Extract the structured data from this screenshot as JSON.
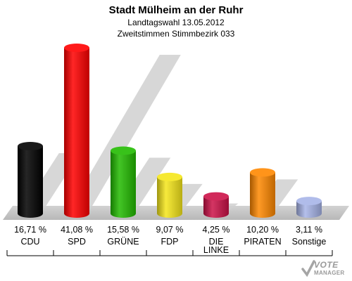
{
  "header": {
    "title": "Stadt Mülheim an der Ruhr",
    "subtitle1": "Landtagswahl 13.05.2012",
    "subtitle2": "Zweitstimmen Stimmbezirk 033"
  },
  "logo": {
    "line1": "VOTE",
    "line2": "MANAGER"
  },
  "chart_data": {
    "type": "bar",
    "categories": [
      "CDU",
      "SPD",
      "GRÜNE",
      "FDP",
      "DIE LINKE",
      "PIRATEN",
      "Sonstige"
    ],
    "values": [
      16.71,
      41.08,
      15.58,
      9.07,
      4.25,
      10.2,
      3.11
    ],
    "value_labels": [
      "16,71 %",
      "41,08 %",
      "15,58 %",
      "9,07 %",
      "4,25 %",
      "10,20 %",
      "3,11 %"
    ],
    "colors": [
      "#000000",
      "#ff0000",
      "#22bb00",
      "#f5e61a",
      "#cc1148",
      "#ff8800",
      "#a7b4e8"
    ],
    "title": "Stadt Mülheim an der Ruhr",
    "xlabel": "",
    "ylabel": "",
    "ylim": [
      0,
      45
    ],
    "grid": false,
    "legend": "none"
  }
}
